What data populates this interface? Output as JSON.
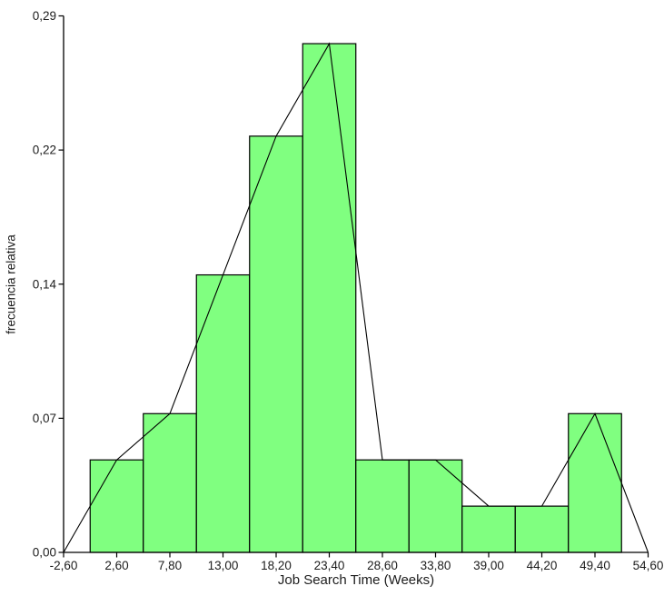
{
  "chart_data": {
    "type": "bar",
    "chart_kind": "relative frequency histogram with frequency polygon overlay",
    "title": "",
    "xlabel": "Job Search Time (Weeks)",
    "ylabel": "frecuencia relativa",
    "xlim": [
      -2.6,
      54.6
    ],
    "ylim": [
      0,
      0.29
    ],
    "bin_width": 5.2,
    "categories": [
      2.6,
      7.8,
      13.0,
      18.2,
      23.4,
      28.6,
      33.8,
      39.0,
      44.2,
      49.4
    ],
    "values": [
      0.05,
      0.075,
      0.15,
      0.225,
      0.275,
      0.05,
      0.05,
      0.025,
      0.025,
      0.075
    ],
    "x_ticks": [
      -2.6,
      2.6,
      7.8,
      13.0,
      18.2,
      23.4,
      28.6,
      33.8,
      39.0,
      44.2,
      49.4,
      54.6
    ],
    "x_tick_labels": [
      "-2,60",
      "2,60",
      "7,80",
      "13,00",
      "18,20",
      "23,40",
      "28,60",
      "33,80",
      "39,00",
      "44,20",
      "49,40",
      "54,60"
    ],
    "y_ticks": [
      0,
      0.0725,
      0.145,
      0.2175,
      0.29
    ],
    "y_tick_labels": [
      "0,00",
      "0,07",
      "0,14",
      "0,22",
      "0,29"
    ],
    "polygon": {
      "x": [
        -2.6,
        2.6,
        7.8,
        13.0,
        18.2,
        23.4,
        28.6,
        33.8,
        39.0,
        44.2,
        49.4,
        54.6
      ],
      "y": [
        0,
        0.05,
        0.075,
        0.15,
        0.225,
        0.275,
        0.05,
        0.05,
        0.025,
        0.025,
        0.075,
        0
      ]
    },
    "grid": false,
    "legend": false,
    "colors": {
      "bar_fill": "#80FF80",
      "bar_border": "#000000",
      "polygon_line": "#000000",
      "axis": "#000000",
      "text": "#1C1C1C",
      "background": "#FFFFFF"
    }
  }
}
